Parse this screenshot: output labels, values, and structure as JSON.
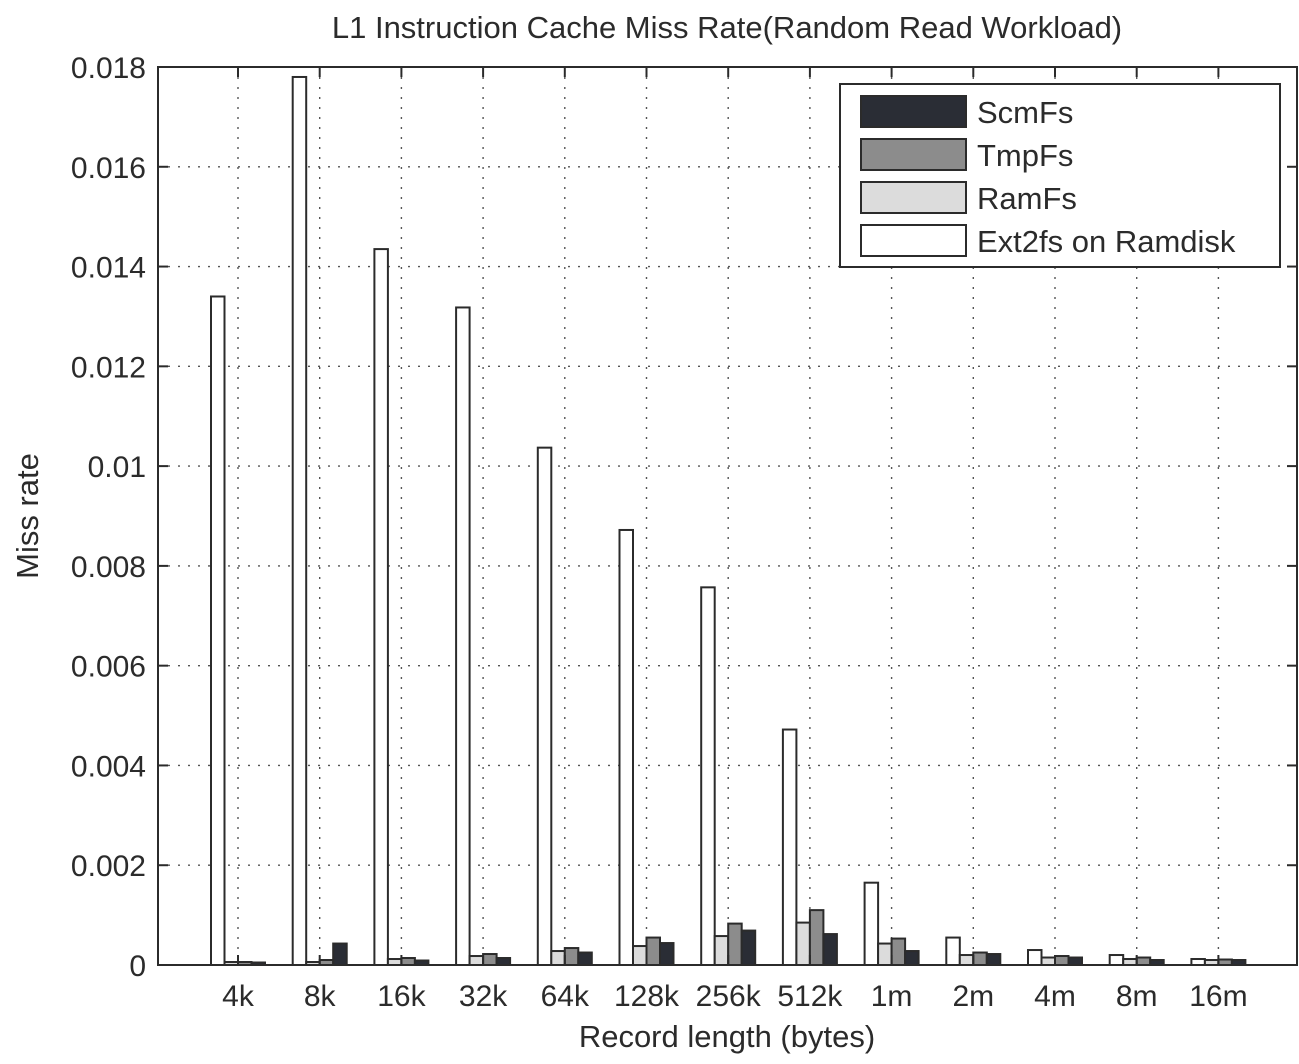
{
  "chart_data": {
    "type": "bar",
    "title": "L1 Instruction Cache Miss Rate(Random Read Workload)",
    "xlabel": "Record length (bytes)",
    "ylabel": "Miss rate",
    "ylim": [
      0,
      0.018
    ],
    "yticks": [
      0,
      0.002,
      0.004,
      0.006,
      0.008,
      0.01,
      0.012,
      0.014,
      0.016,
      0.018
    ],
    "ytick_labels": [
      "0",
      "0.002",
      "0.004",
      "0.006",
      "0.008",
      "0.01",
      "0.012",
      "0.014",
      "0.016",
      "0.018"
    ],
    "grid": true,
    "legend_position": "top-right",
    "categories": [
      "4k",
      "8k",
      "16k",
      "32k",
      "64k",
      "128k",
      "256k",
      "512k",
      "1m",
      "2m",
      "4m",
      "8m",
      "16m"
    ],
    "series": [
      {
        "name": "Ext2fs on Ramdisk",
        "color": "#ffffff",
        "values": [
          0.0134,
          0.0178,
          0.01435,
          0.01318,
          0.01037,
          0.00872,
          0.00757,
          0.00472,
          0.00165,
          0.00055,
          0.0003,
          0.0002,
          0.00012
        ]
      },
      {
        "name": "RamFs",
        "color": "#dcdcdc",
        "values": [
          6e-05,
          6e-05,
          0.00012,
          0.00018,
          0.00028,
          0.00038,
          0.00058,
          0.00085,
          0.00043,
          0.0002,
          0.00015,
          0.00012,
          0.0001
        ]
      },
      {
        "name": "TmpFs",
        "color": "#8c8c8c",
        "values": [
          6e-05,
          0.0001,
          0.00014,
          0.00022,
          0.00034,
          0.00055,
          0.00083,
          0.0011,
          0.00053,
          0.00025,
          0.00018,
          0.00015,
          0.00011
        ]
      },
      {
        "name": "ScmFs",
        "color": "#2a2d35",
        "values": [
          5e-05,
          0.00043,
          9e-05,
          0.00014,
          0.00025,
          0.00044,
          0.00069,
          0.00062,
          0.00028,
          0.00022,
          0.00015,
          0.0001,
          0.0001
        ]
      }
    ],
    "legend_order": [
      "ScmFs",
      "TmpFs",
      "RamFs",
      "Ext2fs on Ramdisk"
    ]
  }
}
